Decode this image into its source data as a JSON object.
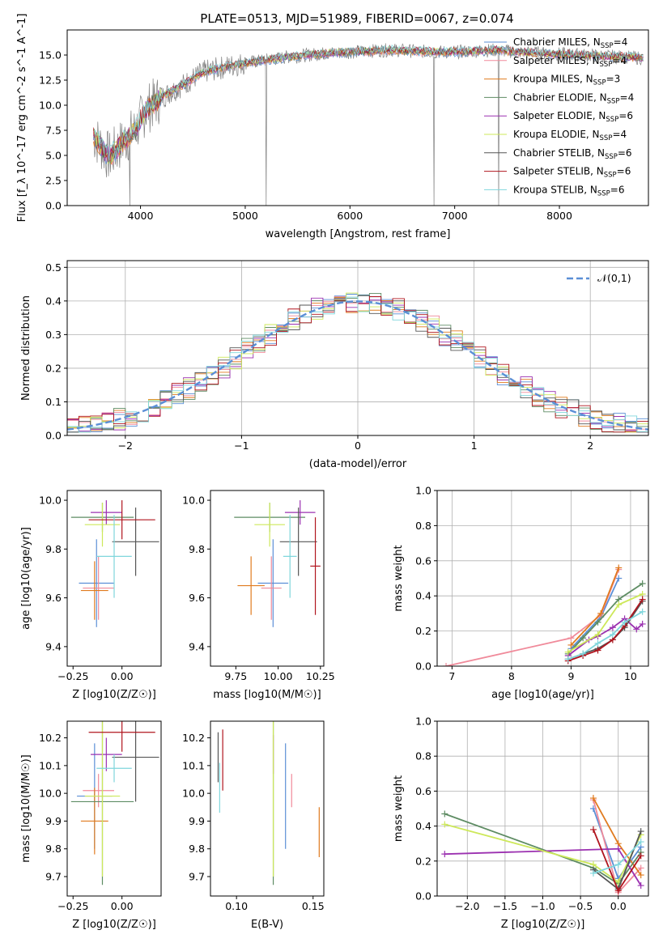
{
  "figure": {
    "title": "PLATE=0513, MJD=51989, FIBERID=0067, z=0.074"
  },
  "models": [
    {
      "name": "Chabrier MILES, N_SSP=4",
      "label_main": "Chabrier MILES, N",
      "sub": "SSP",
      "label_tail": "=4",
      "color": "#5b8fd6"
    },
    {
      "name": "Salpeter MILES, N_SSP=4",
      "label_main": "Salpeter MILES, N",
      "sub": "SSP",
      "label_tail": "=4",
      "color": "#f08a9a"
    },
    {
      "name": "Kroupa MILES, N_SSP=3",
      "label_main": "Kroupa MILES, N",
      "sub": "SSP",
      "label_tail": "=3",
      "color": "#e07b1f"
    },
    {
      "name": "Chabrier ELODIE, N_SSP=4",
      "label_main": "Chabrier ELODIE, N",
      "sub": "SSP",
      "label_tail": "=4",
      "color": "#5e8c63"
    },
    {
      "name": "Salpeter ELODIE, N_SSP=6",
      "label_main": "Salpeter ELODIE, N",
      "sub": "SSP",
      "label_tail": "=6",
      "color": "#9b30b0"
    },
    {
      "name": "Kroupa ELODIE, N_SSP=4",
      "label_main": "Kroupa ELODIE, N",
      "sub": "SSP",
      "label_tail": "=4",
      "color": "#cde85a"
    },
    {
      "name": "Chabrier STELIB, N_SSP=6",
      "label_main": "Chabrier STELIB, N",
      "sub": "SSP",
      "label_tail": "=6",
      "color": "#555555"
    },
    {
      "name": "Salpeter STELIB, N_SSP=6",
      "label_main": "Salpeter STELIB, N",
      "sub": "SSP",
      "label_tail": "=6",
      "color": "#b0151e"
    },
    {
      "name": "Kroupa STELIB, N_SSP=6",
      "label_main": "Kroupa STELIB, N",
      "sub": "SSP",
      "label_tail": "=6",
      "color": "#7fd6dc"
    }
  ],
  "chart_data": [
    {
      "type": "line",
      "panel": "spectrum",
      "xlabel": "wavelength [Angstrom, rest frame]",
      "ylabel": "Flux [f_λ 10^-17 erg cm^-2 s^-1 A^-1]",
      "xlim": [
        3300,
        8850
      ],
      "ylim": [
        0,
        17.5
      ],
      "xticks": [
        4000,
        5000,
        6000,
        7000,
        8000
      ],
      "yticks": [
        0.0,
        2.5,
        5.0,
        7.5,
        10.0,
        12.5,
        15.0
      ],
      "legend": "upper right",
      "data_color": "#808080",
      "continuum": {
        "x": [
          3550,
          3700,
          3850,
          3950,
          4050,
          4200,
          4400,
          4600,
          4800,
          5000,
          5200,
          5400,
          5600,
          5800,
          6000,
          6200,
          6400,
          6600,
          6800,
          7000,
          7200,
          7400,
          7600,
          7800,
          8000,
          8200,
          8400,
          8600,
          8800
        ],
        "y": [
          7.0,
          4.8,
          6.5,
          7.5,
          9.5,
          10.8,
          12.0,
          13.3,
          13.8,
          14.2,
          14.5,
          14.8,
          15.0,
          15.2,
          15.3,
          15.4,
          15.5,
          15.4,
          15.3,
          15.3,
          15.4,
          15.5,
          15.3,
          15.2,
          15.1,
          15.0,
          14.9,
          14.8,
          14.7
        ]
      },
      "features": [
        {
          "x": 3900,
          "y": 0.0
        },
        {
          "x": 5200,
          "y": 0.0
        },
        {
          "x": 6800,
          "y": 0.0
        },
        {
          "x": 7420,
          "y": 0.0
        }
      ]
    },
    {
      "type": "line",
      "panel": "residual_histogram",
      "xlabel": "(data-model)/error",
      "ylabel": "Normed distribution",
      "xlim": [
        -2.5,
        2.5
      ],
      "ylim": [
        0,
        0.52
      ],
      "xticks": [
        -2,
        -1,
        0,
        1,
        2
      ],
      "yticks": [
        0.0,
        0.1,
        0.2,
        0.3,
        0.4,
        0.5
      ],
      "grid": true,
      "legend": "upper right",
      "reference": {
        "name": "𝒩(0,1)",
        "color": "#5b8fd6",
        "style": "dashed"
      },
      "bin_width": 0.1,
      "bins_start": -2.5
    },
    {
      "type": "scatter",
      "panel": "age_vs_Z",
      "xlabel": "Z [log10(Z/Z☉)]",
      "ylabel": "age [log10(age/yr)]",
      "xlim": [
        -0.28,
        0.2
      ],
      "ylim": [
        9.32,
        10.04
      ],
      "xticks": [
        -0.25,
        0.0
      ],
      "yticks": [
        9.4,
        9.6,
        9.8,
        10.0
      ],
      "points": [
        {
          "model": 0,
          "x": -0.13,
          "xerr": 0.09,
          "y": 9.66,
          "yerr": 0.18
        },
        {
          "model": 1,
          "x": -0.12,
          "xerr": 0.08,
          "y": 9.64,
          "yerr": 0.13
        },
        {
          "model": 2,
          "x": -0.14,
          "xerr": 0.07,
          "y": 9.63,
          "yerr": 0.12
        },
        {
          "model": 3,
          "x": -0.1,
          "xerr": 0.16,
          "y": 9.93,
          "yerr": 0.06
        },
        {
          "model": 4,
          "x": -0.08,
          "xerr": 0.08,
          "y": 9.95,
          "yerr": 0.05
        },
        {
          "model": 5,
          "x": -0.1,
          "xerr": 0.09,
          "y": 9.9,
          "yerr": 0.09
        },
        {
          "model": 6,
          "x": 0.07,
          "xerr": 0.12,
          "y": 9.83,
          "yerr": 0.14
        },
        {
          "model": 7,
          "x": 0.0,
          "xerr": 0.17,
          "y": 9.92,
          "yerr": 0.08
        },
        {
          "model": 8,
          "x": -0.04,
          "xerr": 0.09,
          "y": 9.77,
          "yerr": 0.17
        }
      ]
    },
    {
      "type": "scatter",
      "panel": "age_vs_mass",
      "xlabel": "mass [log10(M/M☉)]",
      "ylabel": "",
      "xlim": [
        9.6,
        10.27
      ],
      "ylim": [
        9.32,
        10.04
      ],
      "xticks": [
        9.75,
        10.0,
        10.25
      ],
      "yticks": [
        9.4,
        9.6,
        9.8,
        10.0
      ],
      "points": [
        {
          "model": 0,
          "x": 9.97,
          "xerr": 0.09,
          "y": 9.66,
          "yerr": 0.18
        },
        {
          "model": 1,
          "x": 9.96,
          "xerr": 0.06,
          "y": 9.64,
          "yerr": 0.13
        },
        {
          "model": 2,
          "x": 9.84,
          "xerr": 0.08,
          "y": 9.65,
          "yerr": 0.12
        },
        {
          "model": 3,
          "x": 9.95,
          "xerr": 0.21,
          "y": 9.93,
          "yerr": 0.06
        },
        {
          "model": 4,
          "x": 10.13,
          "xerr": 0.09,
          "y": 9.95,
          "yerr": 0.05
        },
        {
          "model": 5,
          "x": 9.95,
          "xerr": 0.09,
          "y": 9.9,
          "yerr": 0.09
        },
        {
          "model": 6,
          "x": 10.12,
          "xerr": 0.11,
          "y": 9.83,
          "yerr": 0.14
        },
        {
          "model": 7,
          "x": 10.22,
          "xerr": 0.03,
          "y": 9.73,
          "yerr": 0.2
        },
        {
          "model": 8,
          "x": 10.07,
          "xerr": 0.04,
          "y": 9.77,
          "yerr": 0.17
        }
      ]
    },
    {
      "type": "line",
      "panel": "massweight_vs_age",
      "xlabel": "age [log10(age/yr)]",
      "ylabel": "mass weight",
      "xlim": [
        6.75,
        10.3
      ],
      "ylim": [
        0,
        1.0
      ],
      "xticks": [
        7,
        8,
        9,
        10
      ],
      "yticks": [
        0.0,
        0.2,
        0.4,
        0.6,
        0.8,
        1.0
      ],
      "grid": true,
      "series": [
        {
          "model": 0,
          "x": [
            9.0,
            9.5,
            9.8
          ],
          "y": [
            0.1,
            0.28,
            0.5
          ]
        },
        {
          "model": 1,
          "x": [
            6.9,
            9.0,
            9.5,
            9.8
          ],
          "y": [
            0.0,
            0.16,
            0.29,
            0.55
          ]
        },
        {
          "model": 2,
          "x": [
            9.0,
            9.5,
            9.8
          ],
          "y": [
            0.12,
            0.3,
            0.56
          ]
        },
        {
          "model": 3,
          "x": [
            8.95,
            9.2,
            9.45,
            9.8,
            10.2
          ],
          "y": [
            0.07,
            0.16,
            0.25,
            0.38,
            0.47
          ]
        },
        {
          "model": 4,
          "x": [
            8.95,
            9.3,
            9.45,
            9.7,
            9.9,
            10.1,
            10.2
          ],
          "y": [
            0.06,
            0.15,
            0.17,
            0.22,
            0.27,
            0.21,
            0.24
          ]
        },
        {
          "model": 5,
          "x": [
            8.95,
            9.45,
            9.8,
            10.2
          ],
          "y": [
            0.08,
            0.18,
            0.35,
            0.41
          ]
        },
        {
          "model": 6,
          "x": [
            8.95,
            9.2,
            9.45,
            9.7,
            9.9,
            10.2
          ],
          "y": [
            0.04,
            0.07,
            0.1,
            0.15,
            0.22,
            0.37
          ]
        },
        {
          "model": 7,
          "x": [
            8.95,
            9.2,
            9.45,
            9.7,
            9.9,
            10.2
          ],
          "y": [
            0.03,
            0.06,
            0.09,
            0.15,
            0.23,
            0.38
          ]
        },
        {
          "model": 8,
          "x": [
            8.95,
            9.2,
            9.45,
            9.7,
            9.9,
            10.2
          ],
          "y": [
            0.04,
            0.07,
            0.13,
            0.18,
            0.25,
            0.31
          ]
        }
      ]
    },
    {
      "type": "scatter",
      "panel": "mass_vs_Z",
      "xlabel": "Z [log10(Z/Z☉)]",
      "ylabel": "mass [log10(M/M☉)]",
      "xlim": [
        -0.28,
        0.2
      ],
      "ylim": [
        9.63,
        10.26
      ],
      "xticks": [
        -0.25,
        0.0
      ],
      "yticks": [
        9.7,
        9.8,
        9.9,
        10.0,
        10.1,
        10.2
      ],
      "points": [
        {
          "model": 0,
          "x": -0.14,
          "xerr": 0.09,
          "y": 9.99,
          "yerr": 0.19
        },
        {
          "model": 1,
          "x": -0.12,
          "xerr": 0.08,
          "y": 10.01,
          "yerr": 0.06
        },
        {
          "model": 2,
          "x": -0.14,
          "xerr": 0.07,
          "y": 9.9,
          "yerr": 0.12
        },
        {
          "model": 3,
          "x": -0.1,
          "xerr": 0.16,
          "y": 9.97,
          "yerr": 0.3
        },
        {
          "model": 4,
          "x": -0.08,
          "xerr": 0.08,
          "y": 10.14,
          "yerr": 0.06
        },
        {
          "model": 5,
          "x": -0.1,
          "xerr": 0.09,
          "y": 9.99,
          "yerr": 0.29
        },
        {
          "model": 6,
          "x": 0.07,
          "xerr": 0.12,
          "y": 10.13,
          "yerr": 0.16
        },
        {
          "model": 7,
          "x": 0.0,
          "xerr": 0.17,
          "y": 10.22,
          "yerr": 0.07
        },
        {
          "model": 8,
          "x": -0.04,
          "xerr": 0.09,
          "y": 10.09,
          "yerr": 0.05
        }
      ]
    },
    {
      "type": "scatter",
      "panel": "mass_vs_EBV",
      "xlabel": "E(B-V)",
      "ylabel": "",
      "xlim": [
        0.083,
        0.157
      ],
      "ylim": [
        9.63,
        10.26
      ],
      "xticks": [
        0.1,
        0.15
      ],
      "yticks": [
        9.7,
        9.8,
        9.9,
        10.0,
        10.1,
        10.2
      ],
      "points": [
        {
          "model": 0,
          "x": 0.132,
          "y": 9.99,
          "yerr": 0.19
        },
        {
          "model": 1,
          "x": 0.136,
          "y": 10.01,
          "yerr": 0.06
        },
        {
          "model": 2,
          "x": 0.154,
          "y": 9.86,
          "yerr": 0.09
        },
        {
          "model": 3,
          "x": 0.124,
          "y": 9.97,
          "yerr": 0.3
        },
        {
          "model": 4,
          "x": 0.124,
          "y": 10.14,
          "yerr": 0.07
        },
        {
          "model": 5,
          "x": 0.124,
          "y": 9.99,
          "yerr": 0.29
        },
        {
          "model": 6,
          "x": 0.088,
          "y": 10.13,
          "yerr": 0.09
        },
        {
          "model": 7,
          "x": 0.091,
          "y": 10.12,
          "yerr": 0.11
        },
        {
          "model": 8,
          "x": 0.089,
          "y": 10.02,
          "yerr": 0.09
        }
      ]
    },
    {
      "type": "line",
      "panel": "massweight_vs_Z",
      "xlabel": "Z [log10(Z/Z☉)]",
      "ylabel": "mass weight",
      "xlim": [
        -2.4,
        0.4
      ],
      "ylim": [
        0,
        1.0
      ],
      "xticks": [
        -2.0,
        -1.5,
        -1.0,
        -0.5,
        0.0
      ],
      "yticks": [
        0.0,
        0.2,
        0.4,
        0.6,
        0.8,
        1.0
      ],
      "grid": true,
      "series": [
        {
          "model": 0,
          "x": [
            -0.33,
            0.0,
            0.3
          ],
          "y": [
            0.5,
            0.1,
            0.28
          ]
        },
        {
          "model": 1,
          "x": [
            -0.33,
            0.0,
            0.3
          ],
          "y": [
            0.55,
            0.02,
            0.16
          ]
        },
        {
          "model": 2,
          "x": [
            -0.33,
            0.0,
            0.3
          ],
          "y": [
            0.56,
            0.3,
            0.12
          ]
        },
        {
          "model": 3,
          "x": [
            -2.3,
            -0.33,
            0.0,
            0.3
          ],
          "y": [
            0.47,
            0.16,
            0.07,
            0.25
          ]
        },
        {
          "model": 4,
          "x": [
            -2.3,
            0.0,
            0.3
          ],
          "y": [
            0.24,
            0.27,
            0.06
          ]
        },
        {
          "model": 5,
          "x": [
            -2.3,
            -0.33,
            0.0,
            0.3
          ],
          "y": [
            0.41,
            0.18,
            0.08,
            0.35
          ]
        },
        {
          "model": 6,
          "x": [
            -0.33,
            0.0,
            0.3
          ],
          "y": [
            0.15,
            0.04,
            0.37
          ]
        },
        {
          "model": 7,
          "x": [
            -0.33,
            0.0,
            0.3
          ],
          "y": [
            0.38,
            0.03,
            0.23
          ]
        },
        {
          "model": 8,
          "x": [
            -0.33,
            0.0,
            0.3
          ],
          "y": [
            0.13,
            0.18,
            0.31
          ]
        }
      ]
    }
  ]
}
